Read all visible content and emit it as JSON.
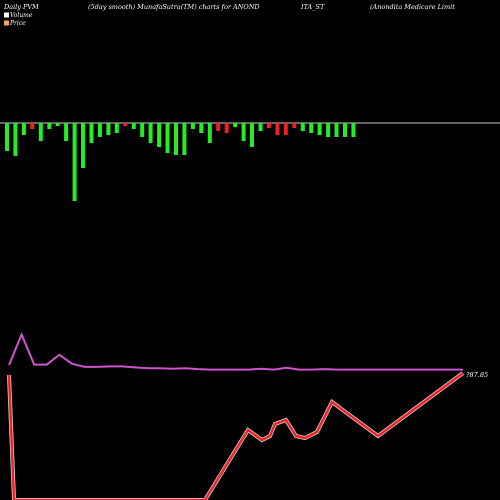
{
  "header": {
    "left_line1": "Daily PVM",
    "left_line2": "Volume",
    "left_line3": "Price",
    "center": "(5day smooth) MunafaSutra(TM) charts for ANOND",
    "center_right": "ITA_ST",
    "right": "(Anondita  Medicare  Limit"
  },
  "legend": [
    {
      "name": "Volume",
      "color": "#ffffff"
    },
    {
      "name": "Price",
      "color": "#f4a460"
    }
  ],
  "colors": {
    "background": "#000000",
    "baseline": "#cccccc",
    "up": "#22ee22",
    "down": "#ee2222",
    "smooth_line": "#cc55cc",
    "price_line": "#ee2222",
    "price_glow": "#ffffff"
  },
  "chart_data": {
    "type": "bar",
    "title": "(5day smooth) MunafaSutra(TM) charts for ANONDITA_ST",
    "value_label": "?87.85",
    "volume_bars": [
      {
        "dir": "up",
        "value": 28
      },
      {
        "dir": "up",
        "value": 33
      },
      {
        "dir": "up",
        "value": 12
      },
      {
        "dir": "down",
        "value": 6
      },
      {
        "dir": "up",
        "value": 18
      },
      {
        "dir": "up",
        "value": 6
      },
      {
        "dir": "up",
        "value": 3
      },
      {
        "dir": "up",
        "value": 18
      },
      {
        "dir": "up",
        "value": 78
      },
      {
        "dir": "up",
        "value": 45
      },
      {
        "dir": "up",
        "value": 20
      },
      {
        "dir": "up",
        "value": 14
      },
      {
        "dir": "up",
        "value": 12
      },
      {
        "dir": "up",
        "value": 10
      },
      {
        "dir": "down",
        "value": 3
      },
      {
        "dir": "up",
        "value": 6
      },
      {
        "dir": "up",
        "value": 14
      },
      {
        "dir": "up",
        "value": 20
      },
      {
        "dir": "up",
        "value": 24
      },
      {
        "dir": "up",
        "value": 30
      },
      {
        "dir": "up",
        "value": 32
      },
      {
        "dir": "up",
        "value": 32
      },
      {
        "dir": "up",
        "value": 6
      },
      {
        "dir": "up",
        "value": 10
      },
      {
        "dir": "up",
        "value": 20
      },
      {
        "dir": "down",
        "value": 8
      },
      {
        "dir": "down",
        "value": 10
      },
      {
        "dir": "up",
        "value": 4
      },
      {
        "dir": "up",
        "value": 18
      },
      {
        "dir": "up",
        "value": 24
      },
      {
        "dir": "up",
        "value": 8
      },
      {
        "dir": "down",
        "value": 5
      },
      {
        "dir": "down",
        "value": 12
      },
      {
        "dir": "down",
        "value": 12
      },
      {
        "dir": "down",
        "value": 5
      },
      {
        "dir": "up",
        "value": 8
      },
      {
        "dir": "up",
        "value": 10
      },
      {
        "dir": "up",
        "value": 12
      },
      {
        "dir": "up",
        "value": 14
      },
      {
        "dir": "up",
        "value": 14
      },
      {
        "dir": "up",
        "value": 14
      },
      {
        "dir": "up",
        "value": 14
      }
    ],
    "smooth_line": [
      [
        0,
        0.22
      ],
      [
        1,
        0.9
      ],
      [
        2,
        0.23
      ],
      [
        3,
        0.23
      ],
      [
        4,
        0.45
      ],
      [
        5,
        0.25
      ],
      [
        6,
        0.18
      ],
      [
        7,
        0.18
      ],
      [
        8,
        0.19
      ],
      [
        9,
        0.19
      ],
      [
        10,
        0.17
      ],
      [
        11,
        0.15
      ],
      [
        12,
        0.15
      ],
      [
        13,
        0.14
      ],
      [
        14,
        0.15
      ],
      [
        15,
        0.13
      ],
      [
        16,
        0.12
      ],
      [
        17,
        0.12
      ],
      [
        18,
        0.12
      ],
      [
        19,
        0.12
      ],
      [
        20,
        0.14
      ],
      [
        21,
        0.12
      ],
      [
        22,
        0.16
      ],
      [
        23,
        0.12
      ],
      [
        24,
        0.12
      ],
      [
        25,
        0.13
      ],
      [
        26,
        0.12
      ],
      [
        27,
        0.12
      ],
      [
        28,
        0.12
      ],
      [
        29,
        0.12
      ],
      [
        30,
        0.12
      ],
      [
        31,
        0.12
      ],
      [
        32,
        0.12
      ],
      [
        33,
        0.12
      ],
      [
        34,
        0.12
      ],
      [
        35,
        0.12
      ],
      [
        36,
        0.12
      ]
    ],
    "price_line": [
      [
        0,
        0.99
      ],
      [
        1,
        0.05
      ],
      [
        2,
        -1.5
      ],
      [
        3,
        0.1
      ],
      [
        4,
        0.35
      ],
      [
        5,
        0.47
      ],
      [
        6,
        0.4
      ],
      [
        7,
        0.42
      ],
      [
        8,
        0.58
      ],
      [
        9,
        0.6
      ],
      [
        10,
        0.42
      ],
      [
        11,
        0.4
      ],
      [
        12,
        0.43
      ],
      [
        13,
        0.7
      ],
      [
        14,
        0.28
      ],
      [
        15,
        0.5
      ],
      [
        16,
        0.75
      ],
      [
        17,
        0.99
      ]
    ]
  }
}
